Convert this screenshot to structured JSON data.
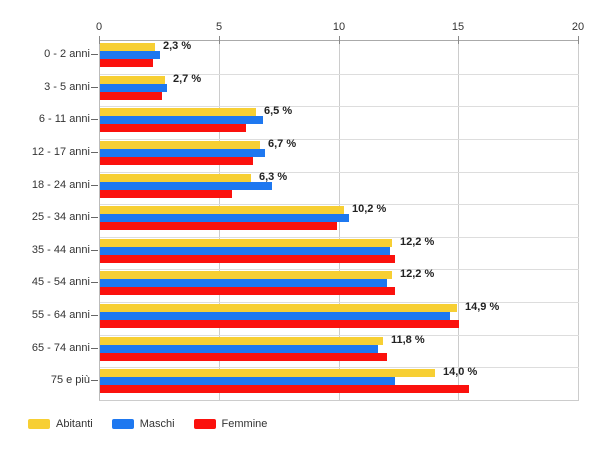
{
  "chart_data": {
    "type": "bar",
    "orientation": "horizontal",
    "title": "",
    "categories": [
      "0 - 2 anni",
      "3 - 5 anni",
      "6 - 11 anni",
      "12 - 17 anni",
      "18 - 24 anni",
      "25 - 34 anni",
      "35 - 44 anni",
      "45 - 54 anni",
      "55 - 64 anni",
      "65 - 74 anni",
      "75 e più"
    ],
    "series": [
      {
        "name": "Abitanti",
        "color": "#F7CF33",
        "values": [
          2.3,
          2.7,
          6.5,
          6.7,
          6.3,
          10.2,
          12.2,
          12.2,
          14.9,
          11.8,
          14.0
        ]
      },
      {
        "name": "Maschi",
        "color": "#1E78F0",
        "values": [
          2.5,
          2.8,
          6.8,
          6.9,
          7.2,
          10.4,
          12.1,
          12.0,
          14.6,
          11.6,
          12.3
        ]
      },
      {
        "name": "Femmine",
        "color": "#FB110D",
        "values": [
          2.2,
          2.6,
          6.1,
          6.4,
          5.5,
          9.9,
          12.3,
          12.3,
          15.0,
          12.0,
          15.4
        ]
      }
    ],
    "bar_value_labels": [
      "2,3 %",
      "2,7 %",
      "6,5 %",
      "6,7 %",
      "6,3 %",
      "10,2 %",
      "12,2 %",
      "12,2 %",
      "14,9 %",
      "11,8 %",
      "14,0 %"
    ],
    "value_labels_for_series": "Abitanti",
    "x_axis": {
      "position": "top",
      "ticks": [
        "0",
        "5",
        "10",
        "15",
        "20"
      ],
      "min": 0,
      "max": 20,
      "grid": true
    },
    "legend": {
      "position": "bottom-left",
      "items": [
        "Abitanti",
        "Maschi",
        "Femmine"
      ]
    }
  },
  "colors": {
    "grid": "#cccccc",
    "separator": "#dddddd",
    "axis_line": "#aaaaaa",
    "tick": "#888888",
    "axis_text": "#333333",
    "value_text": "#222222",
    "background": "#ffffff"
  }
}
